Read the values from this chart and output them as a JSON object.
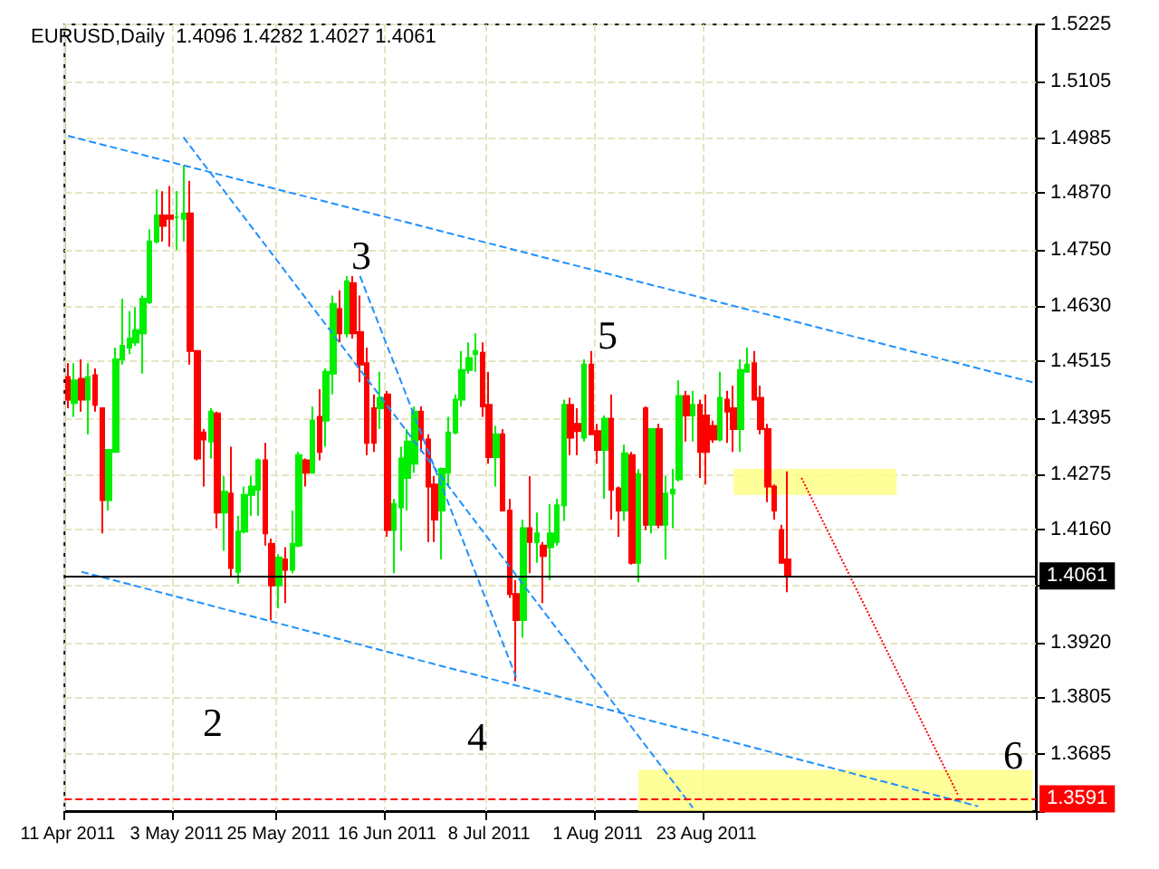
{
  "chart_data": {
    "type": "candlestick",
    "title": "EURUSD,Daily  1.4096 1.4282 1.4027 1.4061",
    "categories": [
      "11 Apr 2011",
      null,
      null,
      null,
      null,
      null,
      null,
      null,
      null,
      null,
      null,
      null,
      null,
      null,
      null,
      null,
      "3 May 2011",
      null,
      null,
      null,
      null,
      null,
      null,
      null,
      null,
      null,
      null,
      null,
      null,
      null,
      null,
      "25 May 2011",
      null,
      null,
      null,
      null,
      null,
      null,
      null,
      null,
      null,
      null,
      null,
      null,
      null,
      null,
      null,
      "16 Jun 2011",
      null,
      null,
      null,
      null,
      null,
      null,
      null,
      null,
      null,
      null,
      null,
      null,
      null,
      null,
      "8 Jul 2011",
      null,
      null,
      null,
      null,
      null,
      null,
      null,
      null,
      null,
      null,
      null,
      null,
      null,
      null,
      null,
      "1 Aug 2011",
      null,
      null,
      null,
      null,
      null,
      null,
      null,
      null,
      null,
      null,
      null,
      null,
      null,
      null,
      null,
      "23 Aug 2011",
      null,
      null,
      null,
      null,
      null,
      null,
      null,
      null,
      null,
      null,
      null,
      null,
      null,
      null,
      null,
      null,
      null,
      null,
      null,
      null,
      null,
      null,
      null,
      null,
      null,
      null,
      null,
      null,
      null,
      null,
      null,
      null,
      null,
      null,
      null,
      null,
      null,
      null,
      null,
      null,
      null,
      null,
      null,
      null,
      null,
      null,
      null,
      null
    ],
    "ohlc": [
      [
        1.4481,
        1.451,
        1.4415,
        1.4433
      ],
      [
        1.4426,
        1.451,
        1.4397,
        1.4474
      ],
      [
        1.4477,
        1.4518,
        1.4408,
        1.4433
      ],
      [
        1.4433,
        1.451,
        1.436,
        1.4481
      ],
      [
        1.4485,
        1.4499,
        1.4408,
        1.4422
      ],
      [
        1.4415,
        1.4415,
        1.4151,
        1.4221
      ],
      [
        1.4221,
        1.4327,
        1.4199,
        1.4327
      ],
      [
        1.4323,
        1.4543,
        1.4323,
        1.4518
      ],
      [
        1.4518,
        1.4646,
        1.4507,
        1.4547
      ],
      [
        1.4543,
        1.462,
        1.4529,
        1.4562
      ],
      [
        1.4554,
        1.4628,
        1.4547,
        1.458
      ],
      [
        1.4573,
        1.4653,
        1.4488,
        1.4646
      ],
      [
        1.4639,
        1.4793,
        1.4635,
        1.4767
      ],
      [
        1.4767,
        1.4877,
        1.4763,
        1.4822
      ],
      [
        1.4822,
        1.4873,
        1.4767,
        1.48
      ],
      [
        1.4822,
        1.4884,
        1.4756,
        1.4815
      ],
      [
        1.4818,
        1.4873,
        1.4749,
        1.4818
      ],
      [
        1.4815,
        1.4928,
        1.4767,
        1.4826
      ],
      [
        1.4826,
        1.4895,
        1.4507,
        1.4536
      ],
      [
        1.4536,
        1.4536,
        1.4305,
        1.4309
      ],
      [
        1.4364,
        1.4371,
        1.425,
        1.4349
      ],
      [
        1.4345,
        1.4415,
        1.4309,
        1.4408
      ],
      [
        1.4404,
        1.4408,
        1.4162,
        1.4195
      ],
      [
        1.4195,
        1.4272,
        1.4114,
        1.4239
      ],
      [
        1.4235,
        1.4334,
        1.4059,
        1.4078
      ],
      [
        1.407,
        1.4188,
        1.4045,
        1.4155
      ],
      [
        1.4155,
        1.425,
        1.4151,
        1.4232
      ],
      [
        1.4232,
        1.4272,
        1.4188,
        1.425
      ],
      [
        1.4243,
        1.4309,
        1.4188,
        1.4305
      ],
      [
        1.4305,
        1.4342,
        1.4125,
        1.4151
      ],
      [
        1.4129,
        1.414,
        1.3968,
        1.4041
      ],
      [
        1.4041,
        1.4107,
        1.3993,
        1.41
      ],
      [
        1.4096,
        1.4122,
        1.4004,
        1.4074
      ],
      [
        1.4074,
        1.4199,
        1.4067,
        1.4129
      ],
      [
        1.4125,
        1.4323,
        1.4122,
        1.4316
      ],
      [
        1.4305,
        1.4309,
        1.425,
        1.4279
      ],
      [
        1.4279,
        1.4419,
        1.4279,
        1.4389
      ],
      [
        1.4397,
        1.4455,
        1.4305,
        1.4323
      ],
      [
        1.4389,
        1.4499,
        1.4334,
        1.4492
      ],
      [
        1.4488,
        1.4653,
        1.4444,
        1.4635
      ],
      [
        1.4624,
        1.4664,
        1.4554,
        1.4573
      ],
      [
        1.4573,
        1.4694,
        1.4565,
        1.4683
      ],
      [
        1.4679,
        1.4694,
        1.4562,
        1.4573
      ],
      [
        1.4576,
        1.4653,
        1.447,
        1.4507
      ],
      [
        1.451,
        1.4543,
        1.4316,
        1.4342
      ],
      [
        1.4415,
        1.4444,
        1.4323,
        1.4342
      ],
      [
        1.4415,
        1.4492,
        1.4371,
        1.4437
      ],
      [
        1.4444,
        1.4452,
        1.4144,
        1.4158
      ],
      [
        1.4158,
        1.4224,
        1.4067,
        1.4213
      ],
      [
        1.4206,
        1.4334,
        1.4114,
        1.4309
      ],
      [
        1.4268,
        1.4371,
        1.4199,
        1.4345
      ],
      [
        1.4298,
        1.4419,
        1.4279,
        1.4408
      ],
      [
        1.4408,
        1.4419,
        1.4323,
        1.4349
      ],
      [
        1.4349,
        1.436,
        1.4133,
        1.425
      ],
      [
        1.4254,
        1.4272,
        1.4133,
        1.418
      ],
      [
        1.4199,
        1.429,
        1.4096,
        1.4287
      ],
      [
        1.4279,
        1.4397,
        1.425,
        1.4364
      ],
      [
        1.4364,
        1.4444,
        1.436,
        1.4433
      ],
      [
        1.4433,
        1.4536,
        1.4419,
        1.4496
      ],
      [
        1.4496,
        1.4554,
        1.4488,
        1.4521
      ],
      [
        1.4529,
        1.4573,
        1.4492,
        1.4536
      ],
      [
        1.4532,
        1.4554,
        1.4397,
        1.4419
      ],
      [
        1.4422,
        1.4492,
        1.4298,
        1.4312
      ],
      [
        1.4312,
        1.4378,
        1.425,
        1.436
      ],
      [
        1.436,
        1.4371,
        1.4199,
        1.4199
      ],
      [
        1.4199,
        1.4224,
        1.4015,
        1.4023
      ],
      [
        1.4023,
        1.4052,
        1.3839,
        1.3968
      ],
      [
        1.3968,
        1.418,
        1.3931,
        1.4162
      ],
      [
        1.4162,
        1.4272,
        1.4067,
        1.4133
      ],
      [
        1.4133,
        1.4195,
        1.4089,
        1.4151
      ],
      [
        1.4125,
        1.4133,
        1.4004,
        1.4103
      ],
      [
        1.4122,
        1.4213,
        1.4052,
        1.4151
      ],
      [
        1.4133,
        1.4224,
        1.4125,
        1.421
      ],
      [
        1.421,
        1.4433,
        1.4177,
        1.4422
      ],
      [
        1.4422,
        1.4437,
        1.4316,
        1.4353
      ],
      [
        1.4382,
        1.4415,
        1.4316,
        1.4367
      ],
      [
        1.4353,
        1.4518,
        1.4345,
        1.4507
      ],
      [
        1.4507,
        1.4536,
        1.436,
        1.436
      ],
      [
        1.4367,
        1.4382,
        1.4298,
        1.4327
      ],
      [
        1.4327,
        1.44,
        1.4224,
        1.4393
      ],
      [
        1.4393,
        1.4444,
        1.418,
        1.4243
      ],
      [
        1.4246,
        1.425,
        1.4144,
        1.4199
      ],
      [
        1.4199,
        1.4338,
        1.4177,
        1.432
      ],
      [
        1.4316,
        1.4323,
        1.4085,
        1.4089
      ],
      [
        1.4089,
        1.4287,
        1.4048,
        1.4276
      ],
      [
        1.4415,
        1.4419,
        1.4158,
        1.4169
      ],
      [
        1.4169,
        1.4371,
        1.4151,
        1.4371
      ],
      [
        1.4371,
        1.4382,
        1.4162,
        1.4169
      ],
      [
        1.4169,
        1.4272,
        1.4096,
        1.4235
      ],
      [
        1.4235,
        1.4287,
        1.4162,
        1.4243
      ],
      [
        1.4265,
        1.4474,
        1.4261,
        1.4441
      ],
      [
        1.4441,
        1.4452,
        1.4345,
        1.44
      ],
      [
        1.44,
        1.4452,
        1.4345,
        1.4422
      ],
      [
        1.4422,
        1.4433,
        1.4268,
        1.4323
      ],
      [
        1.44,
        1.4444,
        1.4254,
        1.4323
      ],
      [
        1.4378,
        1.4389,
        1.4342,
        1.4349
      ],
      [
        1.4349,
        1.4492,
        1.4345,
        1.4437
      ],
      [
        1.4433,
        1.4452,
        1.4342,
        1.4408
      ],
      [
        1.4415,
        1.4463,
        1.4323,
        1.4371
      ],
      [
        1.4371,
        1.4518,
        1.4323,
        1.4496
      ],
      [
        1.4492,
        1.4543,
        1.4492,
        1.4507
      ],
      [
        1.451,
        1.4536,
        1.4433,
        1.4433
      ],
      [
        1.4437,
        1.4463,
        1.436,
        1.4371
      ],
      [
        1.4371,
        1.4382,
        1.4217,
        1.425
      ],
      [
        1.425,
        1.4254,
        1.418,
        1.4199
      ],
      [
        1.4158,
        1.4169,
        1.4089,
        1.4089
      ],
      [
        1.4096,
        1.4282,
        1.4027,
        1.4061
      ],
      null,
      null,
      null,
      null,
      null,
      null,
      null,
      null,
      null,
      null,
      null,
      null,
      null,
      null,
      null,
      null,
      null,
      null,
      null,
      null,
      null,
      null,
      null,
      null,
      null,
      null,
      null,
      null,
      null,
      null,
      null,
      null,
      null,
      null,
      null,
      null
    ],
    "colors": [
      "#ff0000",
      "#00ee00",
      "#ff0000",
      "#00ee00",
      "#ff0000",
      "#ff0000",
      "#00ee00",
      "#00ee00",
      "#00ee00",
      "#00ee00",
      "#00ee00",
      "#00ee00",
      "#00ee00",
      "#00ee00",
      "#ff0000",
      "#ff0000",
      "#00ee00",
      "#00ee00",
      "#ff0000",
      "#ff0000",
      "#ff0000",
      "#00ee00",
      "#ff0000",
      "#00ee00",
      "#ff0000",
      "#00ee00",
      "#00ee00",
      "#00ee00",
      "#00ee00",
      "#ff0000",
      "#ff0000",
      "#00ee00",
      "#ff0000",
      "#00ee00",
      "#00ee00",
      "#ff0000",
      "#00ee00",
      "#ff0000",
      "#00ee00",
      "#00ee00",
      "#ff0000",
      "#00ee00",
      "#ff0000",
      "#ff0000",
      "#ff0000",
      "#ff0000",
      "#00ee00",
      "#ff0000",
      "#00ee00",
      "#00ee00",
      "#00ee00",
      "#00ee00",
      "#ff0000",
      "#ff0000",
      "#ff0000",
      "#00ee00",
      "#00ee00",
      "#00ee00",
      "#00ee00",
      "#00ee00",
      "#00ee00",
      "#ff0000",
      "#ff0000",
      "#00ee00",
      "#ff0000",
      "#ff0000",
      "#ff0000",
      "#00ee00",
      "#ff0000",
      "#00ee00",
      "#ff0000",
      "#00ee00",
      "#00ee00",
      "#00ee00",
      "#ff0000",
      "#ff0000",
      "#00ee00",
      "#ff0000",
      "#ff0000",
      "#00ee00",
      "#ff0000",
      "#ff0000",
      "#00ee00",
      "#ff0000",
      "#00ee00",
      "#ff0000",
      "#00ee00",
      "#ff0000",
      "#00ee00",
      "#00ee00",
      "#00ee00",
      "#ff0000",
      "#00ee00",
      "#ff0000",
      "#ff0000",
      "#ff0000",
      "#00ee00",
      "#ff0000",
      "#ff0000",
      "#00ee00",
      "#00ee00",
      "#ff0000",
      "#ff0000",
      "#ff0000",
      "#ff0000",
      "#ff0000",
      "#ff0000",
      null,
      null,
      null,
      null,
      null,
      null,
      null,
      null,
      null,
      null,
      null,
      null,
      null,
      null,
      null,
      null,
      null,
      null,
      null,
      null,
      null,
      null,
      null,
      null,
      null,
      null,
      null,
      null,
      null,
      null,
      null,
      null,
      null,
      null,
      null,
      null
    ],
    "series": [
      {
        "type": "line",
        "values": [
          1.499,
          null,
          null,
          null,
          null,
          null,
          null,
          null,
          null,
          null,
          null,
          null,
          null,
          null,
          null,
          null,
          null,
          null,
          null,
          null,
          null,
          null,
          null,
          null,
          null,
          null,
          null,
          null,
          null,
          null,
          null,
          null,
          null,
          null,
          null,
          null,
          null,
          null,
          null,
          null,
          null,
          null,
          null,
          null,
          null,
          null,
          null,
          null,
          null,
          null,
          null,
          null,
          null,
          null,
          null,
          null,
          null,
          null,
          null,
          null,
          null,
          null,
          null,
          null,
          null,
          null,
          null,
          null,
          null,
          null,
          null,
          null,
          null,
          null,
          null,
          null,
          null,
          null,
          null,
          null,
          null,
          null,
          null,
          null,
          null,
          null,
          null,
          null,
          null,
          null,
          null,
          null,
          null,
          null,
          null,
          null,
          null,
          null,
          null,
          null,
          null,
          null,
          null,
          null,
          null,
          null,
          null,
          null,
          null,
          null,
          null,
          null,
          null,
          null,
          null,
          null,
          null,
          null,
          null,
          null,
          null,
          null,
          null,
          null,
          null,
          null,
          null,
          null,
          null,
          null,
          null,
          null,
          null,
          null,
          null,
          null,
          null,
          null,
          null,
          null,
          null,
          null,
          1.447
        ],
        "color": "#1e90ff",
        "line_style": "dashed",
        "marker": "none"
      },
      {
        "type": "line",
        "values": [
          null,
          null,
          1.407,
          null,
          null,
          null,
          null,
          null,
          null,
          null,
          null,
          null,
          null,
          null,
          null,
          null,
          null,
          null,
          null,
          null,
          null,
          null,
          null,
          null,
          null,
          null,
          null,
          null,
          null,
          null,
          null,
          null,
          null,
          null,
          null,
          null,
          null,
          null,
          null,
          null,
          null,
          null,
          null,
          null,
          null,
          null,
          null,
          null,
          null,
          null,
          null,
          null,
          null,
          null,
          null,
          null,
          null,
          null,
          null,
          null,
          null,
          null,
          null,
          null,
          null,
          null,
          null,
          null,
          null,
          null,
          null,
          null,
          null,
          null,
          null,
          null,
          null,
          null,
          null,
          null,
          null,
          null,
          null,
          null,
          null,
          null,
          null,
          null,
          null,
          null,
          null,
          null,
          null,
          null,
          null,
          null,
          null,
          null,
          null,
          null,
          null,
          null,
          null,
          null,
          null,
          null,
          null,
          null,
          null,
          null,
          null,
          null,
          null,
          null,
          null,
          null,
          null,
          null,
          null,
          null,
          null,
          null,
          null,
          null,
          null,
          null,
          null,
          null,
          null,
          null,
          null,
          null,
          null,
          null,
          1.3575,
          null,
          null,
          null,
          null,
          null,
          null,
          null,
          null
        ],
        "color": "#1e90ff",
        "line_style": "dashed",
        "marker": "none"
      },
      {
        "type": "line",
        "values": [
          null,
          null,
          null,
          null,
          null,
          null,
          null,
          null,
          null,
          null,
          null,
          null,
          null,
          null,
          null,
          null,
          null,
          1.4987,
          null,
          null,
          null,
          null,
          null,
          null,
          null,
          null,
          null,
          null,
          null,
          null,
          null,
          null,
          null,
          null,
          null,
          null,
          null,
          null,
          null,
          null,
          null,
          null,
          null,
          null,
          null,
          null,
          null,
          null,
          null,
          null,
          null,
          null,
          null,
          null,
          null,
          null,
          null,
          null,
          null,
          null,
          null,
          null,
          null,
          null,
          null,
          null,
          null,
          null,
          null,
          null,
          null,
          null,
          null,
          null,
          null,
          null,
          null,
          null,
          null,
          null,
          null,
          null,
          null,
          null,
          null,
          null,
          null,
          null,
          null,
          null,
          null,
          null,
          1.3572,
          null,
          null,
          null,
          null,
          null,
          null,
          null,
          null,
          null,
          null,
          null,
          null,
          null,
          null,
          null,
          null,
          null,
          null,
          null,
          null,
          null,
          null,
          null,
          null,
          null,
          null,
          null,
          null,
          null,
          null,
          null,
          null,
          null,
          null,
          null,
          null,
          null,
          null,
          null,
          null,
          null,
          null,
          null,
          null,
          null,
          null,
          null,
          null,
          null,
          null
        ],
        "color": "#1e90ff",
        "line_style": "dashed",
        "marker": "none"
      },
      {
        "type": "line",
        "values": [
          null,
          null,
          null,
          null,
          null,
          null,
          null,
          null,
          null,
          null,
          null,
          null,
          null,
          null,
          null,
          null,
          null,
          null,
          null,
          null,
          null,
          null,
          null,
          null,
          null,
          null,
          null,
          null,
          null,
          null,
          null,
          null,
          null,
          null,
          null,
          null,
          null,
          null,
          null,
          null,
          null,
          null,
          null,
          1.4694,
          null,
          null,
          null,
          null,
          null,
          null,
          null,
          null,
          null,
          null,
          null,
          null,
          null,
          null,
          null,
          null,
          null,
          null,
          null,
          null,
          null,
          null,
          1.3847,
          null,
          null,
          null,
          null,
          null,
          null,
          null,
          null,
          null,
          null,
          null,
          null,
          null,
          null,
          null,
          null,
          null,
          null,
          null,
          null,
          null,
          null,
          null,
          null,
          null,
          null,
          null,
          null,
          null,
          null,
          null,
          null,
          null,
          null,
          null,
          null,
          null,
          null,
          null,
          null,
          null,
          null,
          null,
          null,
          null,
          null,
          null,
          null,
          null,
          null,
          null,
          null,
          null,
          null,
          null,
          null,
          null,
          null,
          null,
          null,
          null,
          null,
          null,
          null,
          null,
          null,
          null,
          null,
          null,
          null,
          null,
          null,
          null,
          null,
          null,
          null
        ],
        "color": "#1e90ff",
        "line_style": "dashed",
        "marker": "none"
      },
      {
        "type": "line",
        "values": [
          null,
          null,
          null,
          null,
          null,
          null,
          null,
          null,
          null,
          null,
          null,
          null,
          null,
          null,
          null,
          null,
          null,
          null,
          null,
          null,
          null,
          null,
          null,
          null,
          null,
          null,
          null,
          null,
          null,
          null,
          null,
          null,
          null,
          null,
          null,
          null,
          null,
          null,
          null,
          null,
          null,
          null,
          null,
          null,
          null,
          null,
          null,
          null,
          null,
          null,
          null,
          null,
          null,
          null,
          null,
          null,
          null,
          null,
          null,
          null,
          null,
          null,
          null,
          null,
          null,
          null,
          null,
          null,
          null,
          null,
          null,
          null,
          null,
          null,
          null,
          null,
          null,
          null,
          null,
          null,
          null,
          null,
          null,
          null,
          null,
          null,
          null,
          null,
          null,
          null,
          null,
          null,
          null,
          null,
          null,
          null,
          null,
          null,
          null,
          null,
          null,
          null,
          null,
          null,
          null,
          null,
          null,
          null,
          1.4268,
          null,
          null,
          null,
          null,
          null,
          null,
          null,
          null,
          null,
          null,
          null,
          null,
          null,
          null,
          null,
          null,
          null,
          null,
          null,
          null,
          null,
          null,
          1.36,
          null,
          null,
          null,
          null,
          null,
          null,
          null,
          null,
          null,
          null,
          null
        ],
        "color": "#ff0000",
        "line_style": "dotted",
        "marker": "none"
      }
    ],
    "ylim": [
      1.3565,
      1.5225
    ],
    "yticks": [
      {
        "value": 1.3565,
        "label": null
      },
      1.3685,
      1.3805,
      {
        "value": 1.392,
        "label": "1.3920"
      },
      {
        "value": 1.404,
        "label": null
      },
      {
        "value": 1.416,
        "label": "1.4160"
      },
      1.4275,
      1.4395,
      1.4515,
      {
        "value": 1.463,
        "label": "1.4630"
      },
      {
        "value": 1.475,
        "label": "1.4750"
      },
      {
        "value": 1.487,
        "label": "1.4870"
      },
      1.4985,
      1.5105,
      1.5225
    ],
    "grid": true,
    "ref_lines": [
      {
        "axis": "y",
        "value": 1.4061,
        "label": "1.4061",
        "color": "#000000",
        "line_style": "solid"
      },
      {
        "axis": "y",
        "value": 1.3591,
        "label": "1.3591",
        "color": "#ff0000",
        "line_style": "dashed"
      }
    ],
    "bands": [
      {
        "axis": "y",
        "from": 1.4232,
        "to": 1.4287,
        "color": "#ffff80"
      },
      {
        "axis": "y",
        "from": 1.3565,
        "to": 1.3652,
        "color": "#ffff80"
      }
    ],
    "annotations": [
      "3",
      "5",
      "2",
      "4",
      "6"
    ]
  }
}
